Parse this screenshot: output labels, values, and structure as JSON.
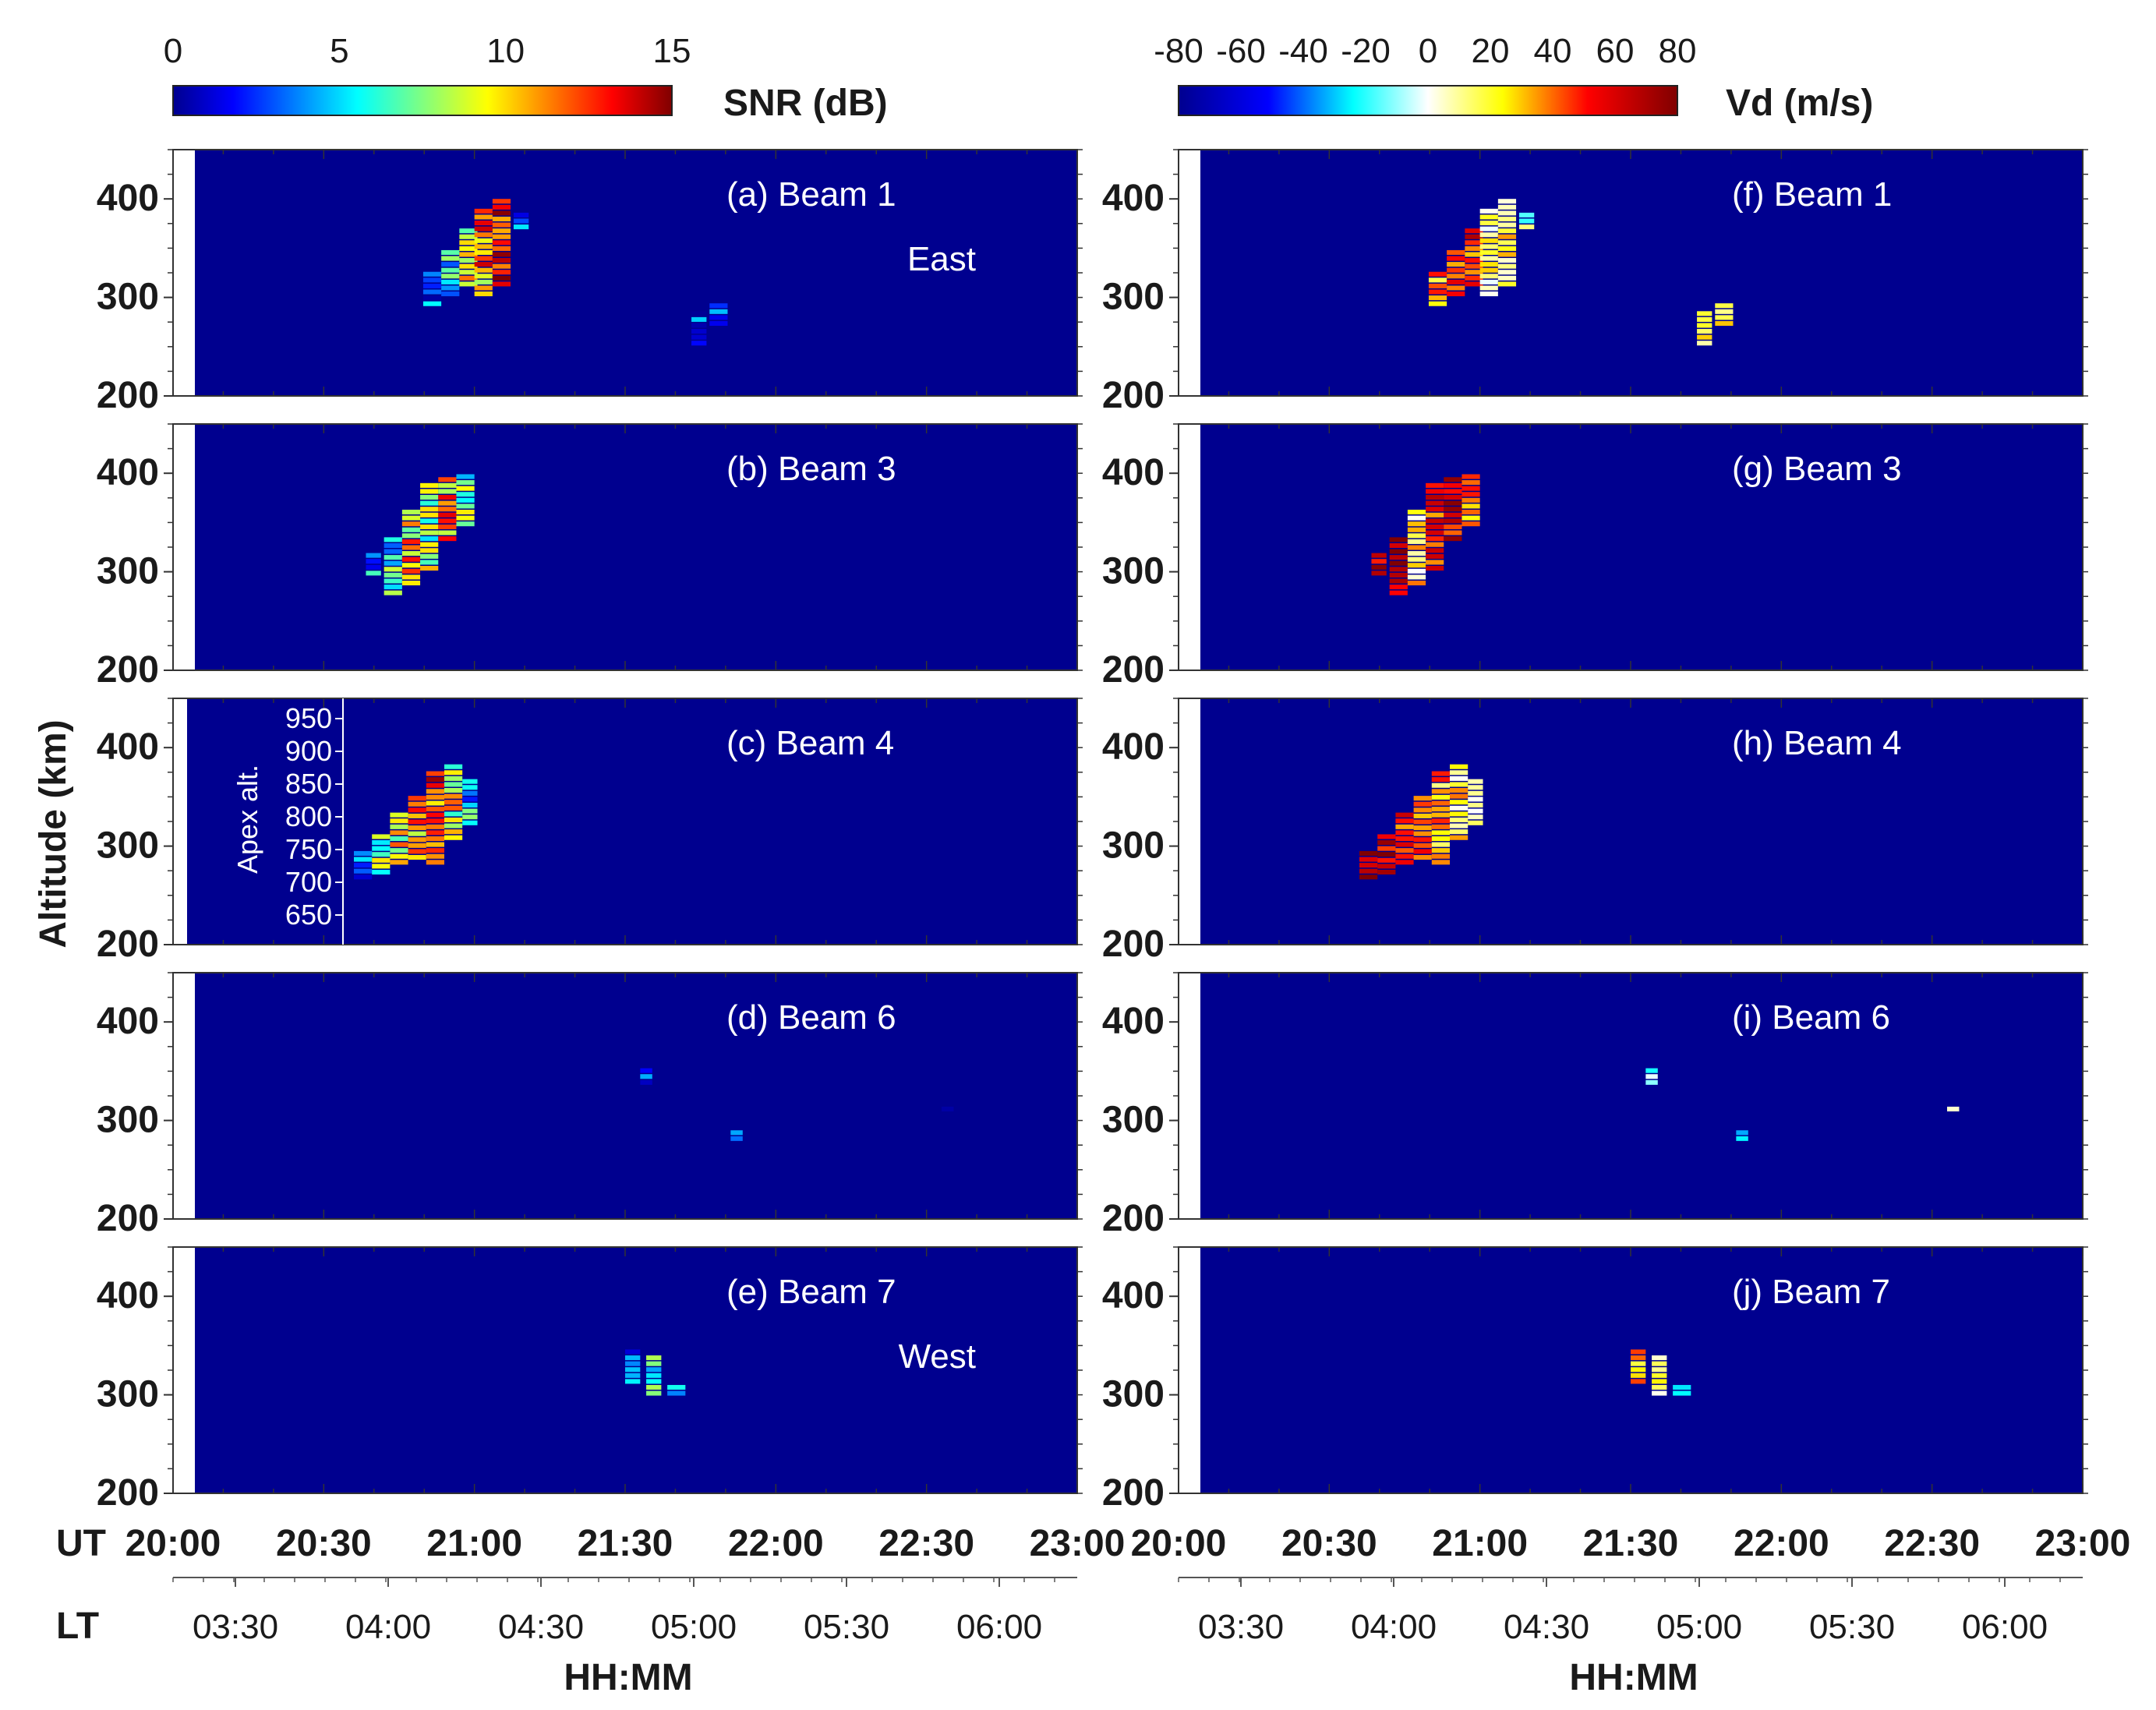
{
  "chart_data": {
    "type": "heatmap",
    "snr_colorbar": {
      "label": "SNR (dB)",
      "ticks": [
        "0",
        "5",
        "10",
        "15"
      ],
      "range": [
        0,
        15
      ],
      "colormap": "jet"
    },
    "vd_colorbar": {
      "label": "Vd (m/s)",
      "ticks": [
        "-80",
        "-60",
        "-40",
        "-20",
        "0",
        "20",
        "40",
        "60",
        "80"
      ],
      "range": [
        -80,
        80
      ],
      "colormap": "blue-white-red"
    },
    "ylabel": "Altitude (km)",
    "ylim": [
      200,
      450
    ],
    "yticks": [
      "200",
      "300",
      "400"
    ],
    "xlim_ut_hours": [
      20.0,
      23.0
    ],
    "ut_axis_label": "UT",
    "ut_ticks": [
      "20:00",
      "20:30",
      "21:00",
      "21:30",
      "22:00",
      "22:30",
      "23:00"
    ],
    "lt_axis_label": "LT",
    "lt_ticks": [
      "03:30",
      "04:00",
      "04:30",
      "05:00",
      "05:30",
      "06:00"
    ],
    "xlabel": "HH:MM",
    "apex_axis": {
      "label": "Apex alt.",
      "ticks": [
        "650",
        "700",
        "750",
        "800",
        "850",
        "900",
        "950"
      ]
    },
    "background_color": "#00008f",
    "panels_snr": [
      {
        "label": "(a) Beam 1",
        "direction": "East"
      },
      {
        "label": "(b) Beam 3",
        "direction": ""
      },
      {
        "label": "(c) Beam 4",
        "direction": ""
      },
      {
        "label": "(d) Beam 6",
        "direction": ""
      },
      {
        "label": "(e) Beam 7",
        "direction": "West"
      }
    ],
    "panels_vd": [
      {
        "label": "(f) Beam 1"
      },
      {
        "label": "(g) Beam 3"
      },
      {
        "label": "(h) Beam 4"
      },
      {
        "label": "(i) Beam 6"
      },
      {
        "label": "(j) Beam 7"
      }
    ],
    "echoes": [
      [
        {
          "t": 20.83,
          "w": 0.06,
          "z": [
            290,
            325
          ],
          "snr": 3,
          "vd": 30
        },
        {
          "t": 20.89,
          "w": 0.06,
          "z": [
            300,
            345
          ],
          "snr": 5,
          "vd": 40
        },
        {
          "t": 20.95,
          "w": 0.06,
          "z": [
            310,
            365
          ],
          "snr": 9,
          "vd": 50
        },
        {
          "t": 21.0,
          "w": 0.06,
          "z": [
            300,
            385
          ],
          "snr": 11,
          "vd": 10
        },
        {
          "t": 21.06,
          "w": 0.06,
          "z": [
            310,
            395
          ],
          "snr": 13,
          "vd": 20
        },
        {
          "t": 21.13,
          "w": 0.05,
          "z": [
            368,
            382
          ],
          "snr": 3,
          "vd": 0
        },
        {
          "t": 21.72,
          "w": 0.05,
          "z": [
            250,
            282
          ],
          "snr": 3,
          "vd": 25
        },
        {
          "t": 21.78,
          "w": 0.06,
          "z": [
            270,
            292
          ],
          "snr": 4,
          "vd": 30
        }
      ],
      [
        {
          "t": 20.64,
          "w": 0.05,
          "z": [
            295,
            315
          ],
          "snr": 4,
          "vd": 60
        },
        {
          "t": 20.7,
          "w": 0.06,
          "z": [
            275,
            330
          ],
          "snr": 6,
          "vd": 70
        },
        {
          "t": 20.76,
          "w": 0.06,
          "z": [
            285,
            360
          ],
          "snr": 10,
          "vd": 20
        },
        {
          "t": 20.82,
          "w": 0.06,
          "z": [
            300,
            390
          ],
          "snr": 8,
          "vd": 50
        },
        {
          "t": 20.88,
          "w": 0.06,
          "z": [
            330,
            395
          ],
          "snr": 11,
          "vd": 60
        },
        {
          "t": 20.94,
          "w": 0.06,
          "z": [
            345,
            395
          ],
          "snr": 7,
          "vd": 40
        }
      ],
      [
        {
          "t": 20.6,
          "w": 0.06,
          "z": [
            265,
            290
          ],
          "snr": 3,
          "vd": 70
        },
        {
          "t": 20.66,
          "w": 0.06,
          "z": [
            270,
            310
          ],
          "snr": 7,
          "vd": 60
        },
        {
          "t": 20.72,
          "w": 0.06,
          "z": [
            280,
            330
          ],
          "snr": 9,
          "vd": 50
        },
        {
          "t": 20.78,
          "w": 0.06,
          "z": [
            285,
            350
          ],
          "snr": 11,
          "vd": 40
        },
        {
          "t": 20.84,
          "w": 0.06,
          "z": [
            280,
            375
          ],
          "snr": 12,
          "vd": 30
        },
        {
          "t": 20.9,
          "w": 0.06,
          "z": [
            305,
            380
          ],
          "snr": 9,
          "vd": 20
        },
        {
          "t": 20.96,
          "w": 0.05,
          "z": [
            320,
            365
          ],
          "snr": 5,
          "vd": 10
        }
      ],
      [
        {
          "t": 21.55,
          "w": 0.04,
          "z": [
            335,
            352
          ],
          "snr": 2,
          "vd": -20
        },
        {
          "t": 21.85,
          "w": 0.04,
          "z": [
            278,
            290
          ],
          "snr": 3,
          "vd": -30
        },
        {
          "t": 22.55,
          "w": 0.04,
          "z": [
            308,
            312
          ],
          "snr": 2,
          "vd": 10
        }
      ],
      [
        {
          "t": 21.5,
          "w": 0.05,
          "z": [
            310,
            345
          ],
          "snr": 4,
          "vd": 30
        },
        {
          "t": 21.57,
          "w": 0.05,
          "z": [
            298,
            335
          ],
          "snr": 6,
          "vd": 10
        },
        {
          "t": 21.64,
          "w": 0.06,
          "z": [
            298,
            305
          ],
          "snr": 5,
          "vd": -20
        }
      ]
    ]
  }
}
